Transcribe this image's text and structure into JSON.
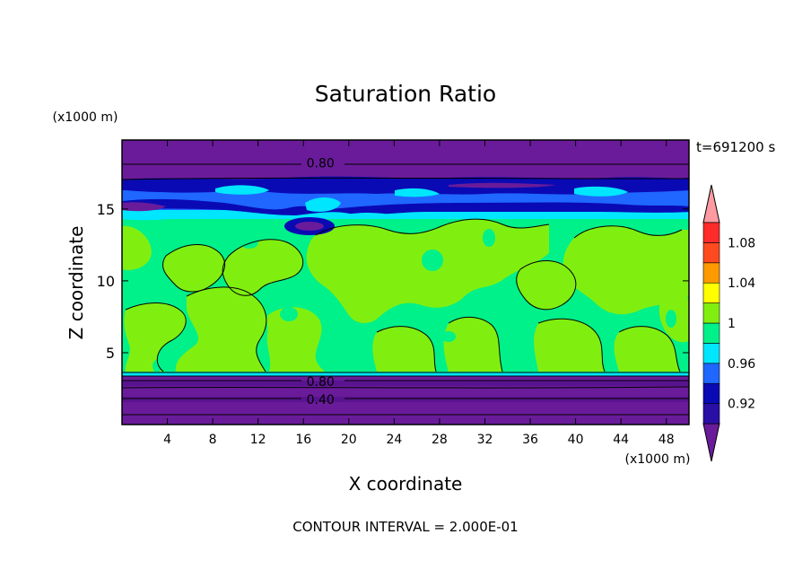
{
  "chart_data": {
    "type": "heatmap",
    "title": "Saturation Ratio",
    "xlabel": "X coordinate",
    "ylabel": "Z coordinate",
    "x_unit": "(x1000 m)",
    "y_unit": "(x1000 m)",
    "time_label": "t=691200 s",
    "footer": "CONTOUR INTERVAL = 2.000E-01",
    "xlim": [
      0,
      50
    ],
    "ylim": [
      0,
      19.8
    ],
    "x_ticks": [
      4,
      8,
      12,
      16,
      20,
      24,
      28,
      32,
      36,
      40,
      44,
      48
    ],
    "y_ticks": [
      5,
      10,
      15
    ],
    "contour_labels": [
      {
        "text": "0.80",
        "x": 17.5,
        "y": 18.2
      },
      {
        "text": "0.80",
        "x": 17.5,
        "y": 3.0
      },
      {
        "text": "0.40",
        "x": 17.5,
        "y": 1.75
      }
    ],
    "colorbar": {
      "tick_labels": [
        "0.92",
        "0.96",
        "1",
        "1.04",
        "1.08"
      ],
      "levels": [
        0.9,
        0.92,
        0.94,
        0.96,
        0.98,
        1.0,
        1.02,
        1.04,
        1.06,
        1.08,
        1.1
      ],
      "colors": [
        "#6a1b9a",
        "#2a0fa6",
        "#0a0ab4",
        "#1f67ff",
        "#00e6ff",
        "#00f08a",
        "#80ef10",
        "#ffff00",
        "#ff9900",
        "#ff4a20",
        "#ff2a2a",
        "#ff9aa2"
      ],
      "under_color": "#6a1b9a",
      "over_color": "#ff9aa2"
    },
    "bands": [
      {
        "level": "below 0.90",
        "z_range": [
          0,
          3.5
        ],
        "color": "#6a1b9a"
      },
      {
        "level": "0.96-1.00",
        "z_range": [
          3.5,
          3.7
        ],
        "color": "#00e6ff"
      },
      {
        "level": "1.00-1.02",
        "z_range": [
          3.7,
          14.2
        ],
        "color": "#00f08a"
      },
      {
        "level": "1.02-1.04",
        "z_range": [
          3.7,
          14.2
        ],
        "color": "#80ef10"
      },
      {
        "level": "0.96-1.00",
        "z_range": [
          14.2,
          15.0
        ],
        "color": "#00e6ff"
      },
      {
        "level": "0.92-0.96",
        "z_range": [
          15.0,
          17.2
        ],
        "color": "#1f67ff"
      },
      {
        "level": "below 0.90",
        "z_range": [
          17.2,
          19.8
        ],
        "color": "#6a1b9a"
      }
    ]
  }
}
